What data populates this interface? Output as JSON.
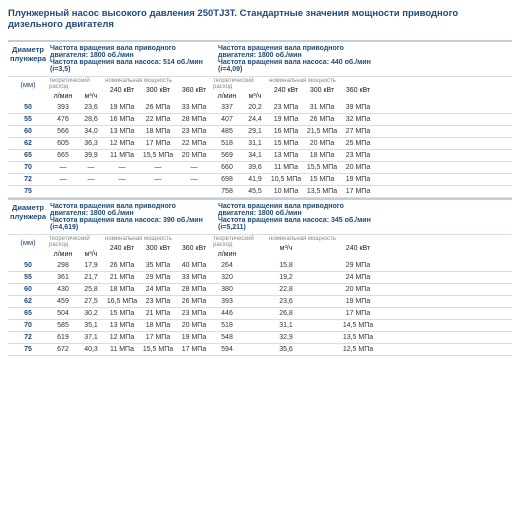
{
  "title": "Плунжерный насос высокого давления 250TJ3T. Стандартные значения мощности приводного дизельного двигателя",
  "diameterHeader": "Диаметр плунжера",
  "unit": "(мм)",
  "theoLabel": "теоретический расход",
  "nomLabel": "номинальная мощность",
  "lmin": "л/мин",
  "m3ch": "м³/ч",
  "blocks": [
    {
      "h1": "Частота вращения вала приводного двигателя: 1800 об./мин",
      "h2": "Частота вращения вала насоса: 514 об./мин (i=3,5)",
      "cols": [
        "240 кВт",
        "300 кВт",
        "360 кВт"
      ]
    },
    {
      "h1": "Частота вращения вала приводного двигателя: 1800 об./мин",
      "h2": "Частота вращения вала насоса: 440 об./мин (i=4,09)",
      "cols": [
        "240 кВт",
        "300 кВт",
        "360 кВт"
      ]
    },
    {
      "h1": "Частота вращения вала приводного двигателя: 1800 об./мин",
      "h2": "Частота вращения вала насоса: 390 об./мин (i=4,619)",
      "cols": [
        "240 кВт",
        "300 кВт",
        "360 кВт"
      ]
    },
    {
      "h1": "Частота вращения вала приводного двигателя: 1800 об./мин",
      "h2": "Частота вращения вала насоса: 345 об./мин (i=5,211)",
      "cols": [
        "240 кВт"
      ]
    }
  ],
  "section1": [
    {
      "d": "50",
      "a": [
        "393",
        "23,6",
        "19 МПа",
        "26 МПа",
        "33 МПа"
      ],
      "b": [
        "337",
        "20,2",
        "23 МПа",
        "31 МПа",
        "39 МПа"
      ]
    },
    {
      "d": "55",
      "a": [
        "476",
        "28,6",
        "16 МПа",
        "22 МПа",
        "28 МПа"
      ],
      "b": [
        "407",
        "24,4",
        "19 МПа",
        "26 МПа",
        "32 МПа"
      ]
    },
    {
      "d": "60",
      "a": [
        "566",
        "34,0",
        "13 МПа",
        "18 МПа",
        "23 МПа"
      ],
      "b": [
        "485",
        "29,1",
        "16 МПа",
        "21,5 МПа",
        "27 МПа"
      ]
    },
    {
      "d": "62",
      "a": [
        "605",
        "36,3",
        "12 МПа",
        "17 МПа",
        "22 МПа"
      ],
      "b": [
        "518",
        "31,1",
        "15 МПа",
        "20 МПа",
        "25 МПа"
      ]
    },
    {
      "d": "65",
      "a": [
        "665",
        "39,9",
        "11 МПа",
        "15,5 МПа",
        "20 МПа"
      ],
      "b": [
        "569",
        "34,1",
        "13 МПа",
        "18 МПа",
        "23 МПа"
      ]
    },
    {
      "d": "70",
      "a": [
        "—",
        "—",
        "—",
        "—",
        "—"
      ],
      "b": [
        "660",
        "39,6",
        "11 МПа",
        "15,5 МПа",
        "20 МПа"
      ]
    },
    {
      "d": "72",
      "a": [
        "—",
        "—",
        "—",
        "—",
        "—"
      ],
      "b": [
        "698",
        "41,9",
        "10,5 МПа",
        "15 МПа",
        "19 МПа"
      ]
    },
    {
      "d": "75",
      "a": [
        "",
        "",
        "",
        "",
        ""
      ],
      "b": [
        "758",
        "45,5",
        "10 МПа",
        "13,5 МПа",
        "17 МПа"
      ]
    }
  ],
  "section2": [
    {
      "d": "50",
      "a": [
        "298",
        "17,9",
        "26 МПа",
        "35 МПа",
        "40 МПа"
      ],
      "b": [
        "264",
        "",
        "15,8",
        "",
        "29 МПа"
      ]
    },
    {
      "d": "55",
      "a": [
        "361",
        "21,7",
        "21 МПа",
        "29 МПа",
        "33 МПа"
      ],
      "b": [
        "320",
        "",
        "19,2",
        "",
        "24 МПа"
      ]
    },
    {
      "d": "60",
      "a": [
        "430",
        "25,8",
        "18 МПа",
        "24 МПа",
        "28 МПа"
      ],
      "b": [
        "380",
        "",
        "22,8",
        "",
        "20 МПа"
      ]
    },
    {
      "d": "62",
      "a": [
        "459",
        "27,5",
        "16,5 МПа",
        "23 МПа",
        "26 МПа"
      ],
      "b": [
        "393",
        "",
        "23,6",
        "",
        "19 МПа"
      ]
    },
    {
      "d": "65",
      "a": [
        "504",
        "30,2",
        "15 МПа",
        "21 МПа",
        "23 МПа"
      ],
      "b": [
        "446",
        "",
        "26,8",
        "",
        "17 МПа"
      ]
    },
    {
      "d": "70",
      "a": [
        "585",
        "35,1",
        "13 МПа",
        "18 МПа",
        "20 МПа"
      ],
      "b": [
        "518",
        "",
        "31,1",
        "",
        "14,5 МПа"
      ]
    },
    {
      "d": "72",
      "a": [
        "619",
        "37,1",
        "12 МПа",
        "17 МПа",
        "19 МПа"
      ],
      "b": [
        "548",
        "",
        "32,9",
        "",
        "13,5 МПа"
      ]
    },
    {
      "d": "75",
      "a": [
        "672",
        "40,3",
        "11 МПа",
        "15,5 МПа",
        "17 МПа"
      ],
      "b": [
        "594",
        "",
        "35,6",
        "",
        "12,5 МПа"
      ]
    }
  ]
}
